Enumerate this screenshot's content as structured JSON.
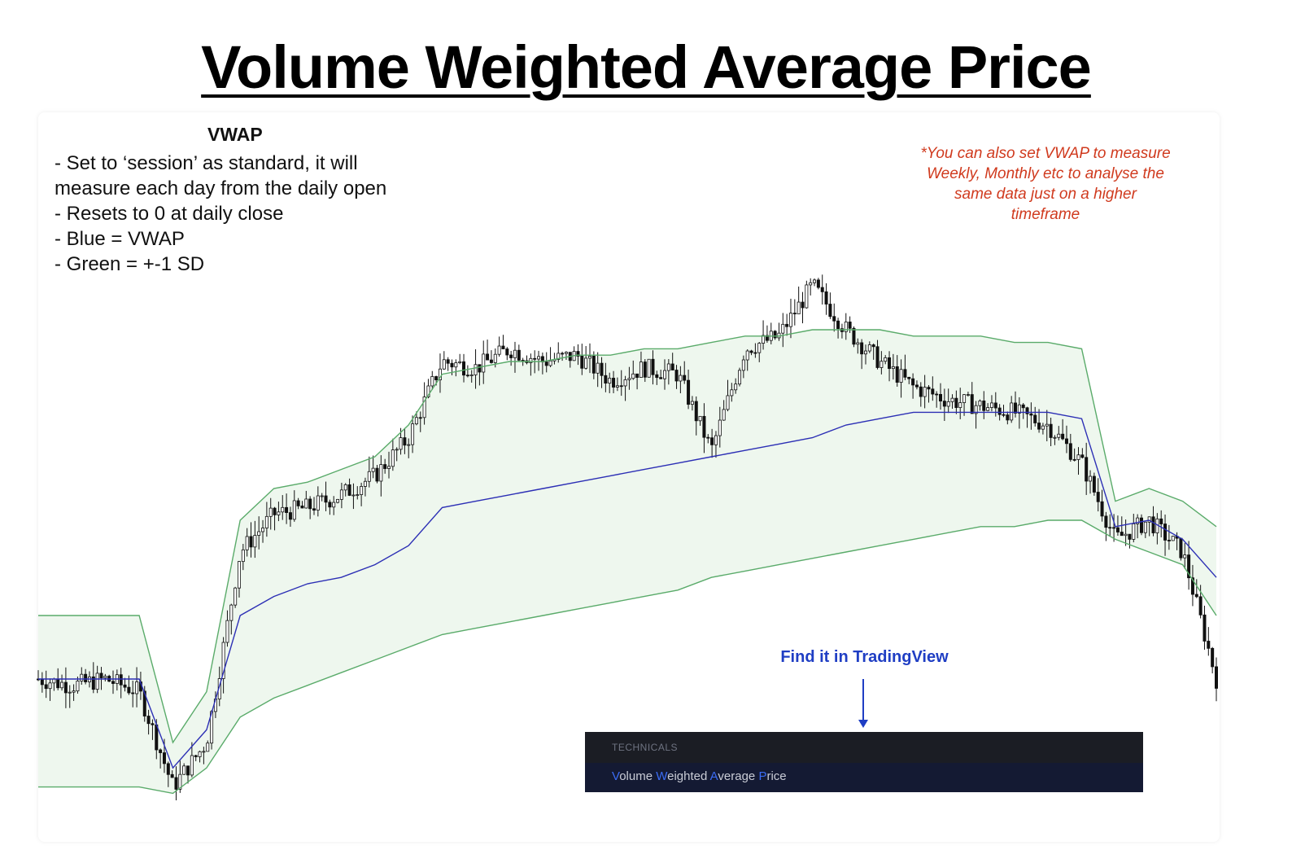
{
  "title": "Volume Weighted Average Price",
  "notes": {
    "heading": "VWAP",
    "lines": [
      "- Set to ‘session’ as standard, it will",
      "measure each day from the daily open",
      "- Resets to 0 at daily close",
      "- Blue = VWAP",
      "- Green = +-1 SD"
    ]
  },
  "side_note": "*You can also set VWAP to measure Weekly, Monthly etc to analyse the same data just on a higher timeframe",
  "find_label": "Find it in TradingView",
  "tradingview": {
    "section": "TECHNICALS",
    "item_parts": [
      "V",
      "olume ",
      "W",
      "eighted ",
      "A",
      "verage ",
      "P",
      "rice"
    ]
  },
  "colors": {
    "vwap": "#2c2fb5",
    "band": "#5aab6a",
    "band_fill": "#eef7ee",
    "candle": "#111111",
    "side_note": "#d03a1e",
    "find_label": "#1f3ec4",
    "tv_bg": "#1b1d24",
    "tv_highlight": "#3b6cf4"
  },
  "chart_data": {
    "type": "line",
    "xlabel": "",
    "ylabel": "",
    "grid": false,
    "ylim": [
      0,
      100
    ],
    "x": [
      0,
      1,
      2,
      3,
      4,
      5,
      6,
      7,
      8,
      9,
      10,
      11,
      12,
      13,
      14,
      15,
      16,
      17,
      18,
      19,
      20,
      21,
      22,
      23,
      24,
      25,
      26,
      27,
      28,
      29,
      30,
      31,
      32,
      33,
      34,
      35
    ],
    "series": [
      {
        "name": "price",
        "values": [
          20,
          19,
          20,
          18,
          3,
          10,
          40,
          46,
          47,
          49,
          52,
          58,
          70,
          69,
          72,
          70,
          71,
          67,
          69,
          68,
          56,
          72,
          74,
          82,
          75,
          70,
          66,
          64,
          63,
          62,
          60,
          54,
          42,
          45,
          40,
          20
        ]
      },
      {
        "name": "VWAP",
        "values": [
          20,
          20,
          20,
          20,
          6,
          12,
          30,
          33,
          35,
          36,
          38,
          41,
          47,
          48,
          49,
          50,
          51,
          52,
          53,
          54,
          55,
          56,
          57,
          58,
          60,
          61,
          62,
          62,
          62,
          62,
          62,
          61,
          44,
          45,
          42,
          36
        ]
      },
      {
        "name": "+1 SD",
        "values": [
          30,
          30,
          30,
          30,
          10,
          18,
          45,
          50,
          51,
          53,
          55,
          60,
          68,
          69,
          70,
          70,
          71,
          71,
          72,
          72,
          73,
          74,
          74,
          75,
          75,
          75,
          74,
          74,
          74,
          73,
          73,
          72,
          48,
          50,
          48,
          44
        ]
      },
      {
        "name": "-1 SD",
        "values": [
          3,
          3,
          3,
          3,
          2,
          6,
          14,
          17,
          19,
          21,
          23,
          25,
          27,
          28,
          29,
          30,
          31,
          32,
          33,
          34,
          36,
          37,
          38,
          39,
          40,
          41,
          42,
          43,
          44,
          44,
          45,
          45,
          42,
          40,
          38,
          30
        ]
      }
    ]
  }
}
